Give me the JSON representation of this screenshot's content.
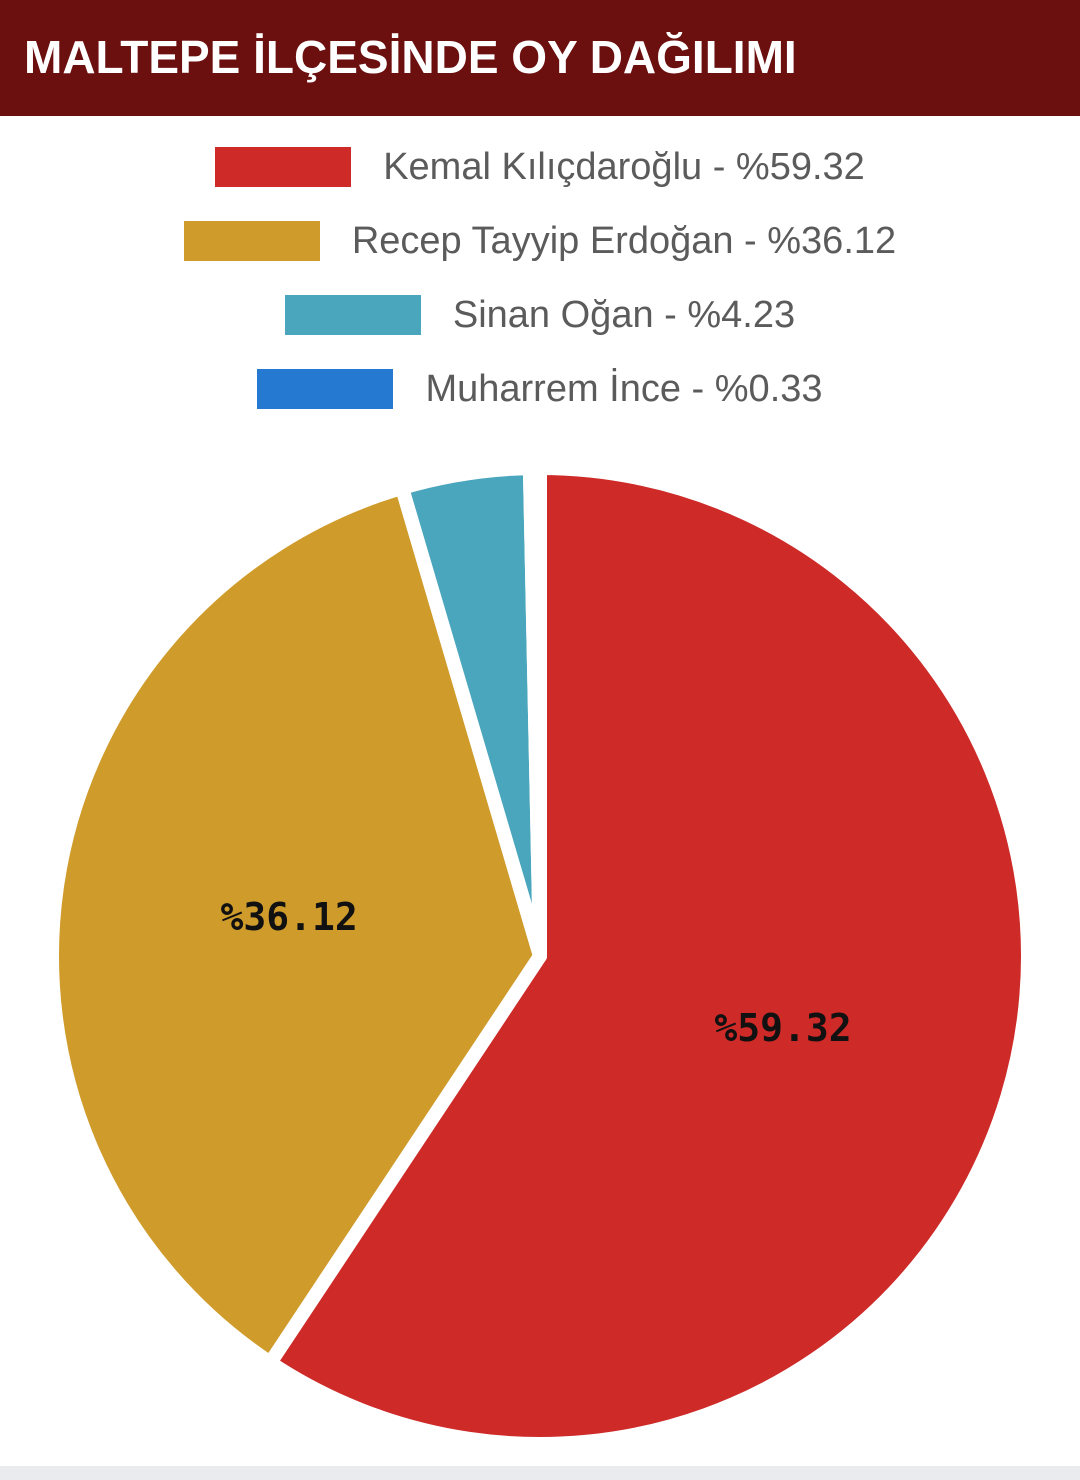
{
  "header": {
    "title": "MALTEPE İLÇESİNDE OY DAĞILIMI"
  },
  "legend": {
    "items": [
      {
        "label": "Kemal Kılıçdaroğlu - %59.32",
        "color": "#cd2a28"
      },
      {
        "label": "Recep Tayyip Erdoğan - %36.12",
        "color": "#cf9b2a"
      },
      {
        "label": "Sinan Oğan - %4.23",
        "color": "#4aa6bd"
      },
      {
        "label": "Muharrem İnce - %0.33",
        "color": "#2679d1"
      }
    ]
  },
  "chart_data": {
    "type": "pie",
    "title": "MALTEPE İLÇESİNDE OY DAĞILIMI",
    "series": [
      {
        "name": "Kemal Kılıçdaroğlu",
        "value": 59.32,
        "color": "#cd2a28",
        "label": "%59.32"
      },
      {
        "name": "Recep Tayyip Erdoğan",
        "value": 36.12,
        "color": "#cf9b2a",
        "label": "%36.12"
      },
      {
        "name": "Sinan Oğan",
        "value": 4.23,
        "color": "#4aa6bd",
        "label": ""
      },
      {
        "name": "Muharrem İnce",
        "value": 0.33,
        "color": "#2679d1",
        "label": ""
      }
    ],
    "start": "top",
    "direction": "clockwise",
    "legend": "top"
  }
}
